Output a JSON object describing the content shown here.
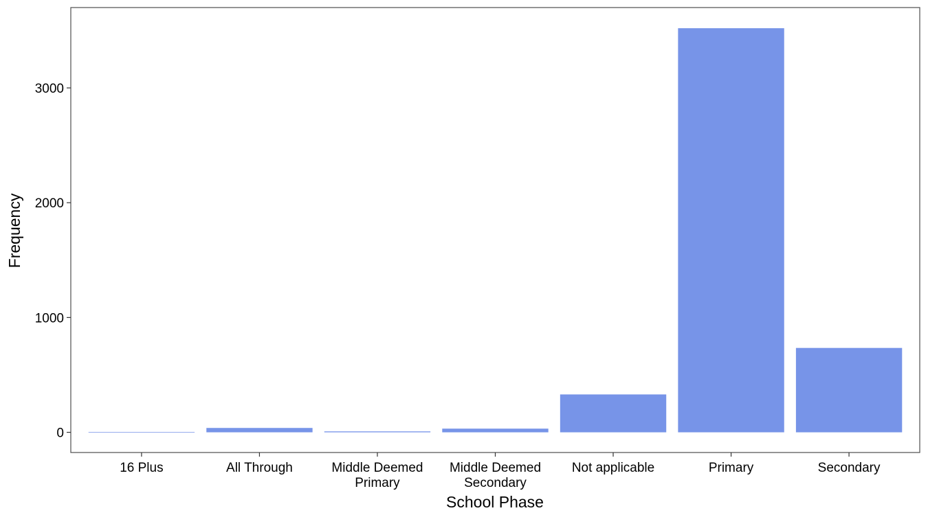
{
  "chart_data": {
    "type": "bar",
    "categories": [
      [
        "16 Plus"
      ],
      [
        "All Through"
      ],
      [
        "Middle Deemed",
        "Primary"
      ],
      [
        "Middle Deemed",
        "Secondary"
      ],
      [
        "Not applicable"
      ],
      [
        "Primary"
      ],
      [
        "Secondary"
      ]
    ],
    "values": [
      2,
      38,
      8,
      32,
      330,
      3520,
      735
    ],
    "xlabel": "School Phase",
    "ylabel": "Frequency",
    "yticks": [
      0,
      1000,
      2000,
      3000
    ],
    "ylim": [
      -176,
      3700
    ],
    "bar_color": "#7794e8",
    "grid": false,
    "legend": "none"
  }
}
